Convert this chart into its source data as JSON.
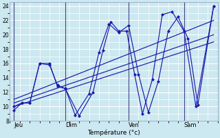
{
  "xlabel": "Température (°c)",
  "bg_color": "#cce8f0",
  "grid_color": "#ffffff",
  "line_color": "#1a1aaa",
  "ylim": [
    8,
    24.5
  ],
  "yticks": [
    8,
    10,
    12,
    14,
    16,
    18,
    20,
    22,
    24
  ],
  "xlim": [
    0,
    10.5
  ],
  "day_labels": [
    "Jeu",
    "Dim",
    "Ven",
    "Sam"
  ],
  "day_positions": [
    0.2,
    2.8,
    6.0,
    8.8
  ],
  "vline_positions": [
    0.2,
    2.8,
    6.0,
    8.8
  ],
  "figsize": [
    3.2,
    2.0
  ],
  "dpi": 100,
  "trend_lines": [
    {
      "x": [
        0.2,
        10.3
      ],
      "y": [
        10.0,
        19.0
      ]
    },
    {
      "x": [
        0.2,
        10.3
      ],
      "y": [
        10.5,
        20.0
      ]
    },
    {
      "x": [
        0.2,
        10.3
      ],
      "y": [
        11.0,
        22.0
      ]
    }
  ],
  "osc_line1_x": [
    0.2,
    0.6,
    1.0,
    1.5,
    2.0,
    2.4,
    2.8,
    3.5,
    4.2,
    4.7,
    5.1,
    5.5,
    5.9,
    6.3,
    6.7,
    7.2,
    7.7,
    8.2,
    8.8,
    9.4,
    10.3
  ],
  "osc_line1_y": [
    9.5,
    10.5,
    10.5,
    16.0,
    16.0,
    12.8,
    12.5,
    8.7,
    12.0,
    17.8,
    21.8,
    20.5,
    20.5,
    14.5,
    9.0,
    13.8,
    22.8,
    23.2,
    20.5,
    10.0,
    24.0
  ],
  "osc_line2_x": [
    0.2,
    0.6,
    1.0,
    1.5,
    2.0,
    2.4,
    2.8,
    3.3,
    4.0,
    4.5,
    5.0,
    5.5,
    6.0,
    6.5,
    7.0,
    7.5,
    8.0,
    8.5,
    9.0,
    9.5,
    10.3
  ],
  "osc_line2_y": [
    10.0,
    10.5,
    10.5,
    16.0,
    15.8,
    13.0,
    12.5,
    8.8,
    11.8,
    17.5,
    21.5,
    20.3,
    21.3,
    14.5,
    9.2,
    13.5,
    20.5,
    22.5,
    19.5,
    10.2,
    24.0
  ]
}
